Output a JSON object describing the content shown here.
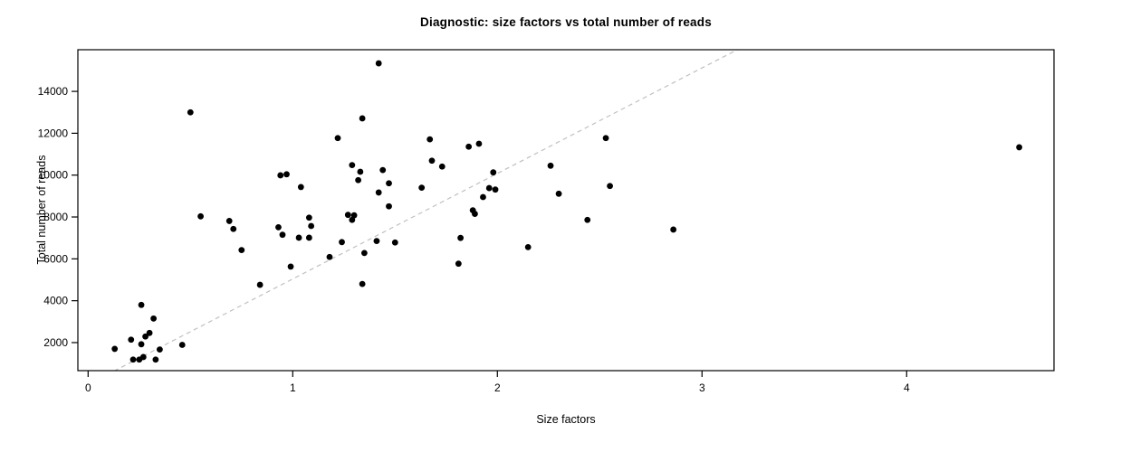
{
  "chart_data": {
    "type": "scatter",
    "title": "Diagnostic: size factors vs total number of reads",
    "xlabel": "Size factors",
    "ylabel": "Total number of reads",
    "xlim": [
      -0.05,
      4.72
    ],
    "ylim": [
      660,
      15990
    ],
    "x_ticks": [
      0,
      1,
      2,
      3,
      4
    ],
    "y_ticks": [
      2000,
      4000,
      6000,
      8000,
      10000,
      12000,
      14000
    ],
    "grid": false,
    "legend": null,
    "point_color": "#000000",
    "point_radius": 3.4,
    "frame_color": "#000000",
    "background": "#ffffff",
    "reference_line": {
      "style": "dashed",
      "color": "#c0c0c0",
      "intercept": 0,
      "slope": 5040
    },
    "points": [
      [
        0.13,
        1700
      ],
      [
        0.21,
        2140
      ],
      [
        0.22,
        1190
      ],
      [
        0.25,
        1190
      ],
      [
        0.26,
        1920
      ],
      [
        0.26,
        3800
      ],
      [
        0.27,
        1310
      ],
      [
        0.28,
        2290
      ],
      [
        0.3,
        2460
      ],
      [
        0.32,
        3150
      ],
      [
        0.33,
        1190
      ],
      [
        0.35,
        1670
      ],
      [
        0.46,
        1890
      ],
      [
        0.5,
        13000
      ],
      [
        0.55,
        8030
      ],
      [
        0.69,
        7810
      ],
      [
        0.71,
        7430
      ],
      [
        0.75,
        6420
      ],
      [
        0.84,
        4760
      ],
      [
        0.93,
        7510
      ],
      [
        0.94,
        9990
      ],
      [
        0.95,
        7150
      ],
      [
        0.97,
        10040
      ],
      [
        0.99,
        5630
      ],
      [
        1.03,
        7010
      ],
      [
        1.04,
        9430
      ],
      [
        1.08,
        7010
      ],
      [
        1.08,
        7970
      ],
      [
        1.09,
        7570
      ],
      [
        1.18,
        6090
      ],
      [
        1.22,
        11770
      ],
      [
        1.24,
        6800
      ],
      [
        1.27,
        8100
      ],
      [
        1.29,
        7860
      ],
      [
        1.29,
        10480
      ],
      [
        1.3,
        8080
      ],
      [
        1.32,
        9760
      ],
      [
        1.33,
        10160
      ],
      [
        1.34,
        12710
      ],
      [
        1.34,
        4800
      ],
      [
        1.35,
        6280
      ],
      [
        1.41,
        6850
      ],
      [
        1.42,
        15340
      ],
      [
        1.42,
        9170
      ],
      [
        1.44,
        10240
      ],
      [
        1.47,
        8510
      ],
      [
        1.47,
        9610
      ],
      [
        1.5,
        6780
      ],
      [
        1.63,
        9400
      ],
      [
        1.67,
        11710
      ],
      [
        1.68,
        10690
      ],
      [
        1.73,
        10410
      ],
      [
        1.81,
        5770
      ],
      [
        1.82,
        7000
      ],
      [
        1.86,
        11360
      ],
      [
        1.88,
        8320
      ],
      [
        1.89,
        8150
      ],
      [
        1.91,
        11500
      ],
      [
        1.93,
        8950
      ],
      [
        1.96,
        9380
      ],
      [
        1.98,
        10130
      ],
      [
        1.99,
        9310
      ],
      [
        2.15,
        6560
      ],
      [
        2.26,
        10450
      ],
      [
        2.3,
        9110
      ],
      [
        2.44,
        7860
      ],
      [
        2.53,
        11770
      ],
      [
        2.55,
        9480
      ],
      [
        2.86,
        7400
      ],
      [
        4.55,
        11330
      ]
    ]
  }
}
